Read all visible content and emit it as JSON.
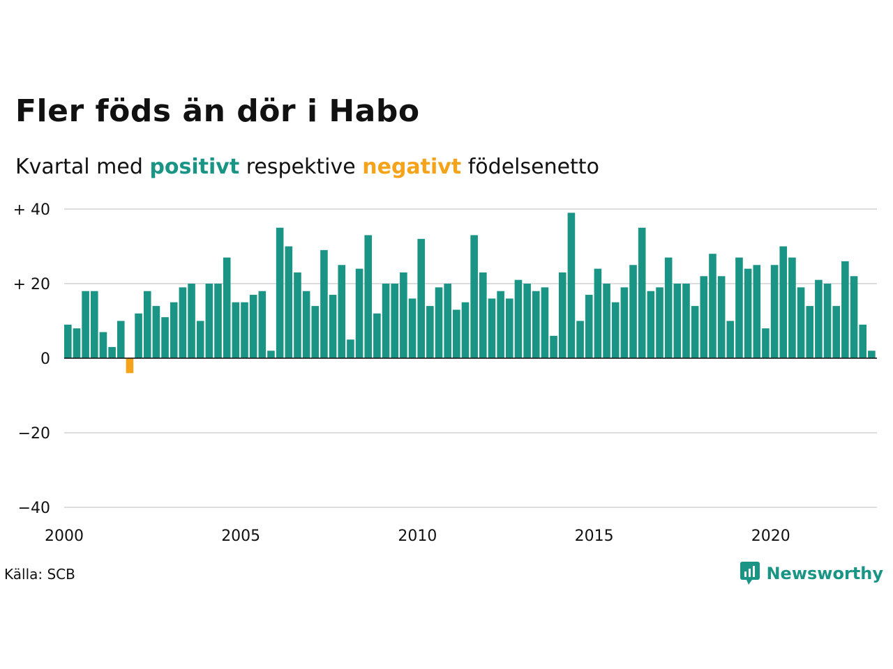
{
  "title_main": "Fler föds än dör i Habo",
  "subtitle": {
    "prefix": "Kvartal med",
    "positive": "positivt",
    "middle": "respektive",
    "negative": "negativt",
    "suffix": "födelsenetto"
  },
  "source": "Källa: SCB",
  "brand": {
    "name": "Newsworthy",
    "icon": "newsworthy-logo-icon"
  },
  "colors": {
    "positive": "#1a9585",
    "negative": "#f5a31a",
    "grid": "#dddddd"
  },
  "chart_data": {
    "type": "bar",
    "title": "Fler föds än dör i Habo",
    "subtitle": "Kvartal med positivt respektive negativt födelsenetto",
    "xlabel": "",
    "ylabel": "",
    "ylim": [
      -40,
      40
    ],
    "yticks": [
      40,
      20,
      0,
      -20,
      -40
    ],
    "ytick_labels": [
      "+ 40",
      "+ 20",
      "0",
      "−20",
      "−40"
    ],
    "xticks": [
      2000,
      2005,
      2010,
      2015,
      2020
    ],
    "xtick_labels": [
      "2000",
      "2005",
      "2010",
      "2015",
      "2020"
    ],
    "x_start_year": 2000,
    "grid": true,
    "values": [
      9,
      8,
      18,
      18,
      7,
      3,
      10,
      -4,
      12,
      18,
      14,
      11,
      15,
      19,
      20,
      10,
      20,
      20,
      27,
      15,
      15,
      17,
      18,
      2,
      35,
      30,
      23,
      18,
      14,
      29,
      17,
      25,
      5,
      24,
      33,
      12,
      20,
      20,
      23,
      16,
      32,
      14,
      19,
      20,
      13,
      15,
      33,
      23,
      16,
      18,
      16,
      21,
      20,
      18,
      19,
      6,
      23,
      39,
      10,
      17,
      24,
      20,
      15,
      19,
      25,
      35,
      18,
      19,
      27,
      20,
      20,
      14,
      22,
      28,
      22,
      10,
      27,
      24,
      25,
      8,
      25,
      30,
      27,
      19,
      14,
      21,
      20,
      14,
      26,
      22,
      9,
      2
    ]
  }
}
